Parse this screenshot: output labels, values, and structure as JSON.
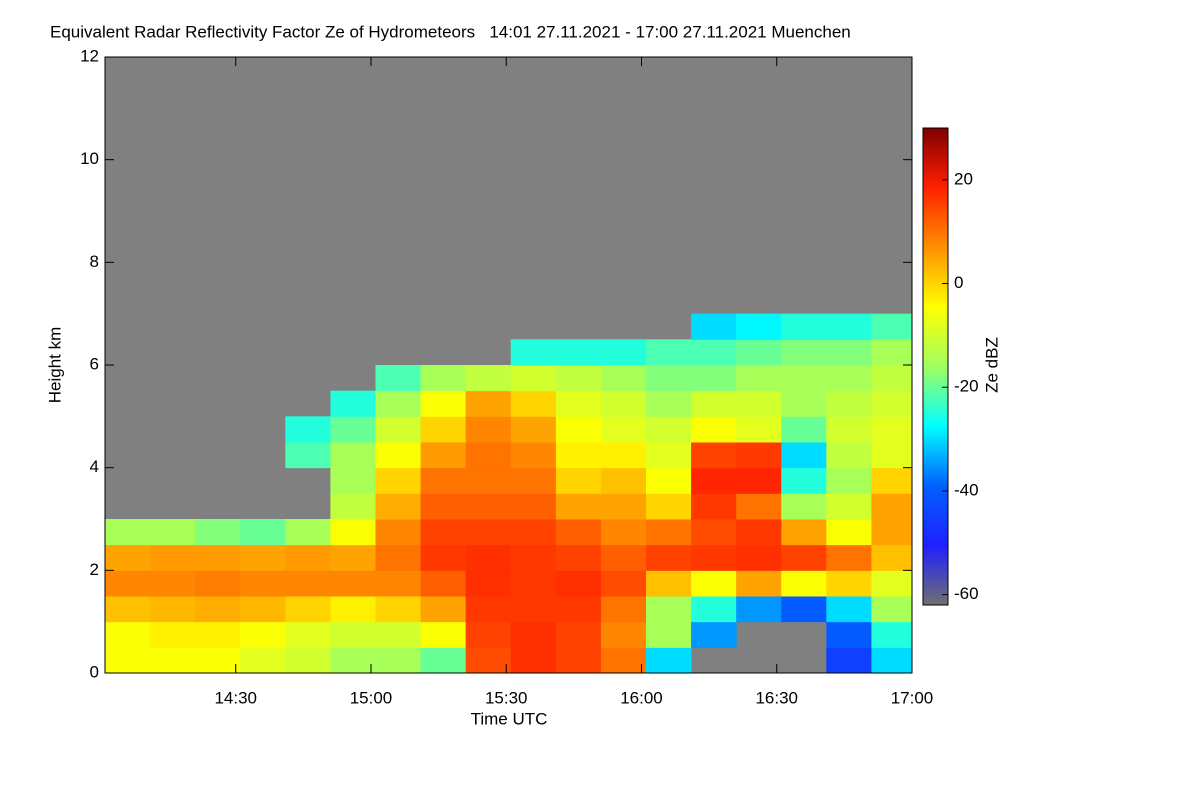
{
  "chart_data": {
    "type": "heatmap",
    "title": "Equivalent Radar Reflectivity Factor Ze of Hydrometeors   14:01 27.11.2021 - 17:00 27.11.2021 Muenchen",
    "xlabel": "Time UTC",
    "ylabel": "Height km",
    "colorbar_label": "Ze dBZ",
    "xlim": [
      841,
      1020
    ],
    "ylim": [
      0,
      12
    ],
    "xticks": [
      {
        "value": 870,
        "label": "14:30"
      },
      {
        "value": 900,
        "label": "15:00"
      },
      {
        "value": 930,
        "label": "15:30"
      },
      {
        "value": 960,
        "label": "16:00"
      },
      {
        "value": 990,
        "label": "16:30"
      },
      {
        "value": 1020,
        "label": "17:00"
      }
    ],
    "yticks": [
      0,
      2,
      4,
      6,
      8,
      10,
      12
    ],
    "clim": [
      -62,
      30
    ],
    "cticks": [
      -60,
      -40,
      -20,
      0,
      20
    ],
    "colors": [
      "#707070",
      "#2020ff",
      "#0060ff",
      "#00ffff",
      "#a0ff60",
      "#ffff00",
      "#ff9000",
      "#ff2000",
      "#800000"
    ],
    "nodata_color": "#808080",
    "x": [
      841,
      851,
      861,
      871,
      881,
      891,
      901,
      911,
      921,
      931,
      941,
      951,
      961,
      971,
      981,
      991,
      1001,
      1011,
      1020
    ],
    "y": [
      0,
      0.5,
      1,
      1.5,
      2,
      2.5,
      3,
      3.5,
      4,
      4.5,
      5,
      5.5,
      6,
      6.5,
      7
    ],
    "z": [
      [
        -5,
        -5,
        2,
        8,
        5,
        -15,
        null,
        null,
        null,
        null,
        null,
        null,
        null,
        null
      ],
      [
        -5,
        -3,
        3,
        8,
        6,
        -15,
        null,
        null,
        null,
        null,
        null,
        null,
        null,
        null
      ],
      [
        -5,
        -3,
        4,
        9,
        6,
        -18,
        null,
        null,
        null,
        null,
        null,
        null,
        null,
        null
      ],
      [
        -8,
        -5,
        3,
        8,
        5,
        -20,
        null,
        null,
        null,
        null,
        null,
        null,
        null,
        null
      ],
      [
        -10,
        -8,
        0,
        8,
        6,
        -15,
        null,
        null,
        -22,
        -25,
        null,
        null,
        null,
        null
      ],
      [
        -15,
        -10,
        -3,
        8,
        5,
        -5,
        -12,
        -15,
        -15,
        -20,
        -25,
        null,
        null,
        null
      ],
      [
        -15,
        -10,
        0,
        8,
        10,
        8,
        4,
        0,
        -5,
        -10,
        -15,
        -22,
        null,
        null
      ],
      [
        -20,
        -5,
        5,
        12,
        16,
        15,
        12,
        10,
        6,
        0,
        -5,
        -15,
        null,
        null
      ],
      [
        14,
        15,
        16,
        17,
        17,
        15,
        12,
        10,
        10,
        8,
        5,
        -12,
        null,
        null
      ],
      [
        17,
        17,
        16,
        16,
        16,
        15,
        12,
        10,
        8,
        5,
        0,
        -10,
        -25,
        null
      ],
      [
        15,
        15,
        16,
        17,
        15,
        12,
        5,
        0,
        -3,
        -5,
        -8,
        -12,
        -25,
        null
      ],
      [
        10,
        8,
        10,
        14,
        12,
        8,
        5,
        2,
        -3,
        -8,
        -10,
        -15,
        -25,
        null
      ],
      [
        -30,
        -15,
        -15,
        2,
        15,
        10,
        0,
        -5,
        -8,
        -10,
        -15,
        -18,
        -22,
        null
      ],
      [
        null,
        -35,
        -25,
        -5,
        16,
        14,
        16,
        18,
        15,
        -5,
        -10,
        -18,
        -22,
        -30
      ],
      [
        null,
        null,
        -35,
        5,
        17,
        16,
        10,
        18,
        16,
        -8,
        -10,
        -15,
        -20,
        -28
      ],
      [
        null,
        null,
        -40,
        -5,
        15,
        5,
        -15,
        -25,
        -30,
        -20,
        -15,
        -15,
        -18,
        -25
      ],
      [
        -45,
        -40,
        -30,
        0,
        10,
        -5,
        -10,
        -15,
        -12,
        -10,
        -12,
        -15,
        -18,
        -25
      ],
      [
        -30,
        -25,
        -15,
        -8,
        2,
        5,
        5,
        0,
        -8,
        -8,
        -10,
        -12,
        -15,
        -22
      ]
    ]
  }
}
